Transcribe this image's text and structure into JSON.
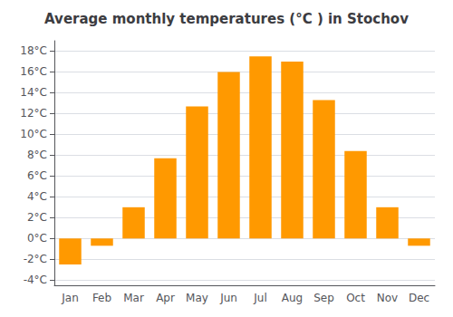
{
  "chart_data": {
    "type": "bar",
    "title": "Average monthly temperatures (°C ) in Stochov",
    "categories": [
      "Jan",
      "Feb",
      "Mar",
      "Apr",
      "May",
      "Jun",
      "Jul",
      "Aug",
      "Sep",
      "Oct",
      "Nov",
      "Dec"
    ],
    "values": [
      -2.5,
      -0.7,
      3.0,
      7.7,
      12.7,
      16.0,
      17.5,
      17.0,
      13.3,
      8.4,
      3.0,
      -0.7
    ],
    "color": "#FF9900",
    "ylim": [
      -4.5,
      19
    ],
    "yticks": [
      {
        "value": -4,
        "label": "-4°C"
      },
      {
        "value": -2,
        "label": "-2°C"
      },
      {
        "value": 0,
        "label": "0°C"
      },
      {
        "value": 2,
        "label": "2°C"
      },
      {
        "value": 4,
        "label": "4°C"
      },
      {
        "value": 6,
        "label": "6°C"
      },
      {
        "value": 8,
        "label": "8°C"
      },
      {
        "value": 10,
        "label": "10°C"
      },
      {
        "value": 12,
        "label": "12°C"
      },
      {
        "value": 14,
        "label": "14°C"
      },
      {
        "value": 16,
        "label": "16°C"
      },
      {
        "value": 18,
        "label": "18°C"
      }
    ],
    "grid": true
  }
}
